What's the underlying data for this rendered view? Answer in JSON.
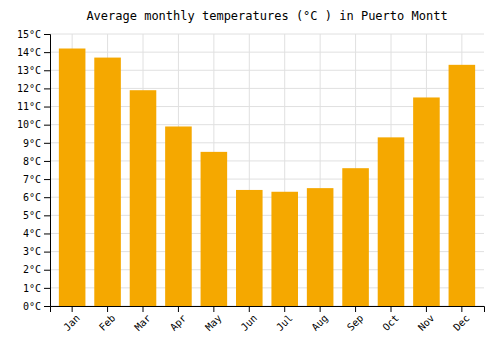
{
  "chart_data": {
    "type": "bar",
    "title": "Average monthly temperatures (°C ) in Puerto Montt",
    "categories": [
      "Jan",
      "Feb",
      "Mar",
      "Apr",
      "May",
      "Jun",
      "Jul",
      "Aug",
      "Sep",
      "Oct",
      "Nov",
      "Dec"
    ],
    "values": [
      14.2,
      13.7,
      11.9,
      9.9,
      8.5,
      6.4,
      6.3,
      6.5,
      7.6,
      9.3,
      11.5,
      13.3
    ],
    "color": "#F5A800",
    "ylim": [
      0,
      15
    ],
    "yticks": [
      {
        "value": 0,
        "label": "0°C"
      },
      {
        "value": 1,
        "label": "1°C"
      },
      {
        "value": 2,
        "label": "2°C"
      },
      {
        "value": 3,
        "label": "3°C"
      },
      {
        "value": 4,
        "label": "4°C"
      },
      {
        "value": 5,
        "label": "5°C"
      },
      {
        "value": 6,
        "label": "6°C"
      },
      {
        "value": 7,
        "label": "7°C"
      },
      {
        "value": 8,
        "label": "8°C"
      },
      {
        "value": 9,
        "label": "9°C"
      },
      {
        "value": 10,
        "label": "10°C"
      },
      {
        "value": 11,
        "label": "11°C"
      },
      {
        "value": 12,
        "label": "12°C"
      },
      {
        "value": 13,
        "label": "13°C"
      },
      {
        "value": 14,
        "label": "14°C"
      },
      {
        "value": 15,
        "label": "15°C"
      }
    ],
    "grid": true
  }
}
